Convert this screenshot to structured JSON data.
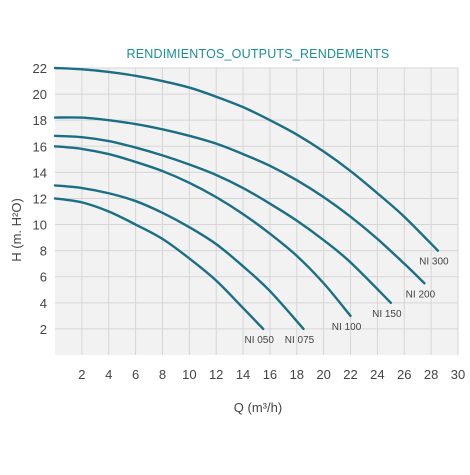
{
  "chart_data": {
    "type": "line",
    "title": "RENDIMIENTOS_OUTPUTS_RENDEMENTS",
    "xlabel": "Q (m³/h)",
    "ylabel": "H (m. H²O)",
    "xlim": [
      0,
      30
    ],
    "ylim": [
      0,
      22
    ],
    "x_ticks": [
      2,
      4,
      6,
      8,
      10,
      12,
      14,
      16,
      18,
      20,
      22,
      24,
      26,
      28,
      30
    ],
    "y_ticks": [
      2,
      4,
      6,
      8,
      10,
      12,
      14,
      16,
      18,
      20,
      22
    ],
    "grid": true,
    "curve_color": "#1a6f86",
    "grid_color": "#d6d6d6",
    "plot_bg": "#f2f2f2",
    "title_color": "#1a8f96",
    "series": [
      {
        "name": "NI 050",
        "x": [
          0,
          2,
          4,
          6,
          8,
          10,
          12,
          14,
          15.5
        ],
        "y": [
          12,
          11.7,
          11,
          10,
          8.9,
          7.4,
          5.7,
          3.6,
          2
        ]
      },
      {
        "name": "NI 075",
        "x": [
          0,
          2,
          4,
          6,
          8,
          10,
          12,
          14,
          16,
          18.5
        ],
        "y": [
          13,
          12.8,
          12.4,
          11.8,
          10.9,
          9.8,
          8.5,
          6.8,
          4.9,
          2
        ]
      },
      {
        "name": "NI 100",
        "x": [
          0,
          2,
          4,
          6,
          8,
          10,
          12,
          14,
          16,
          18,
          20,
          22
        ],
        "y": [
          16,
          15.8,
          15.4,
          14.8,
          14.1,
          13.2,
          12.1,
          10.8,
          9.3,
          7.6,
          5.5,
          3
        ]
      },
      {
        "name": "NI 150",
        "x": [
          0,
          2,
          4,
          6,
          8,
          10,
          12,
          14,
          16,
          18,
          20,
          22,
          25
        ],
        "y": [
          16.8,
          16.7,
          16.4,
          15.9,
          15.3,
          14.6,
          13.8,
          12.8,
          11.6,
          10.3,
          8.8,
          7.1,
          4
        ]
      },
      {
        "name": "NI 200",
        "x": [
          0,
          2,
          4,
          6,
          8,
          10,
          12,
          14,
          16,
          18,
          20,
          22,
          24,
          26,
          27.5
        ],
        "y": [
          18.2,
          18.2,
          18,
          17.7,
          17.3,
          16.8,
          16.2,
          15.4,
          14.5,
          13.4,
          12.1,
          10.6,
          8.9,
          7,
          5.5
        ]
      },
      {
        "name": "NI 300",
        "x": [
          0,
          2,
          4,
          6,
          8,
          10,
          12,
          14,
          16,
          18,
          20,
          22,
          24,
          26,
          28.5
        ],
        "y": [
          22,
          21.9,
          21.7,
          21.4,
          21,
          20.5,
          19.8,
          19,
          18,
          16.9,
          15.6,
          14.1,
          12.4,
          10.6,
          8
        ]
      }
    ]
  }
}
